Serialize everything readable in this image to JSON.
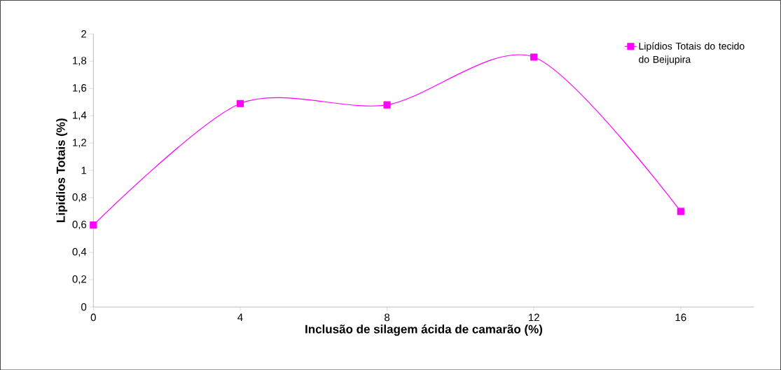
{
  "chart_data": {
    "type": "line",
    "xlabel": "Inclusão de silagem ácida de camarão (%)",
    "ylabel": "Lipidios Totais (%)",
    "x": [
      0,
      4,
      8,
      12,
      16
    ],
    "series": [
      {
        "name": "Lipídios Totais do tecido do Beijupira",
        "color": "#ff00ff",
        "values": [
          0.6,
          1.49,
          1.48,
          1.83,
          0.7
        ]
      }
    ],
    "xlim": [
      0,
      18
    ],
    "xticks": [
      0,
      4,
      8,
      12,
      16
    ],
    "ylim": [
      0,
      2
    ],
    "yticks": [
      0,
      {
        "value": 0.2,
        "label": "0,2"
      },
      {
        "value": 0.4,
        "label": "0,4"
      },
      {
        "value": 0.6,
        "label": "0,6"
      },
      {
        "value": 0.8,
        "label": "0,8"
      },
      1,
      {
        "value": 1.2,
        "label": "1,2"
      },
      {
        "value": 1.4,
        "label": "1,4"
      },
      {
        "value": 1.6,
        "label": "1,6"
      },
      {
        "value": 1.8,
        "label": "1,8"
      },
      2
    ],
    "grid": false,
    "legend": "top right",
    "marker": "square",
    "line_style": "solid"
  }
}
